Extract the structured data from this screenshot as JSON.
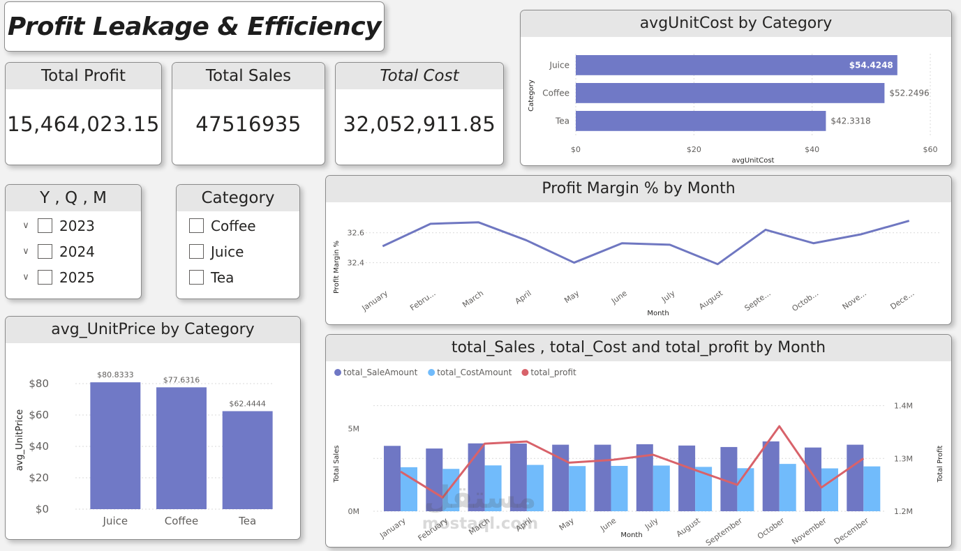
{
  "dashboard": {
    "title": "Profit Leakage & Efficiency"
  },
  "kpis": [
    {
      "label": "Total Profit",
      "value": "15,464,023.15"
    },
    {
      "label": "Total Sales",
      "value": "47516935"
    },
    {
      "label": "Total Cost",
      "value": "32,052,911.85"
    }
  ],
  "slicers": {
    "date": {
      "label": "Y , Q , M",
      "items": [
        "2023",
        "2024",
        "2025"
      ]
    },
    "category": {
      "label": "Category",
      "items": [
        "Coffee",
        "Juice",
        "Tea"
      ]
    }
  },
  "watermark": {
    "arabic": "مستقل",
    "latin": "mostaql.com"
  },
  "chart_data": [
    {
      "id": "avg_unit_cost",
      "type": "bar",
      "orientation": "horizontal",
      "title": "avgUnitCost by Category",
      "xlabel": "avgUnitCost",
      "ylabel": "Category",
      "categories": [
        "Juice",
        "Coffee",
        "Tea"
      ],
      "values": [
        54.4248,
        52.2496,
        42.3318
      ],
      "data_labels": [
        "$54.4248",
        "$52.2496",
        "$42.3318"
      ],
      "xlim": [
        0,
        60
      ],
      "x_ticks": [
        0,
        20,
        40,
        60
      ],
      "x_tick_labels": [
        "$0",
        "$20",
        "$40",
        "$60"
      ],
      "color": "#7079c6",
      "grid": true
    },
    {
      "id": "profit_margin",
      "type": "line",
      "title": "Profit Margin % by Month",
      "xlabel": "Month",
      "ylabel": "Profit Margin %",
      "categories": [
        "January",
        "Febru...",
        "March",
        "April",
        "May",
        "June",
        "July",
        "August",
        "Septe...",
        "Octob...",
        "Nove...",
        "Dece..."
      ],
      "values": [
        32.51,
        32.66,
        32.67,
        32.55,
        32.4,
        32.53,
        32.52,
        32.39,
        32.62,
        32.53,
        32.59,
        32.68
      ],
      "ylim": [
        32.3,
        32.72
      ],
      "y_ticks": [
        32.4,
        32.6
      ],
      "y_tick_labels": [
        "32.4",
        "32.6"
      ],
      "color": "#6f77c1",
      "grid": true
    },
    {
      "id": "avg_unit_price",
      "type": "bar",
      "title": "avg_UnitPrice by Category",
      "xlabel": "",
      "ylabel": "avg_UnitPrice",
      "categories": [
        "Juice",
        "Coffee",
        "Tea"
      ],
      "values": [
        80.8333,
        77.6316,
        62.4444
      ],
      "data_labels": [
        "$80.8333",
        "$77.6316",
        "$62.4444"
      ],
      "ylim": [
        0,
        88
      ],
      "y_ticks": [
        0,
        20,
        40,
        60,
        80
      ],
      "y_tick_labels": [
        "$0",
        "$20",
        "$40",
        "$60",
        "$80"
      ],
      "color": "#7079c6",
      "grid": true
    },
    {
      "id": "sales_cost_profit",
      "type": "bar",
      "title": "total_Sales , total_Cost and total_profit by Month",
      "xlabel": "Month",
      "ylabel": "Total Sales",
      "y2label": "Total Profit",
      "legend": "top-left",
      "categories": [
        "January",
        "February",
        "March",
        "April",
        "May",
        "June",
        "July",
        "August",
        "September",
        "October",
        "November",
        "December"
      ],
      "series": [
        {
          "name": "total_SaleAmount",
          "kind": "bar",
          "axis": "left",
          "color": "#6f77c4",
          "values": [
            3.95,
            3.79,
            4.1,
            4.09,
            4.02,
            4.02,
            4.05,
            3.97,
            3.88,
            4.22,
            3.85,
            4.02
          ]
        },
        {
          "name": "total_CostAmount",
          "kind": "bar",
          "axis": "left",
          "color": "#71bbfb",
          "values": [
            2.66,
            2.56,
            2.77,
            2.8,
            2.73,
            2.74,
            2.76,
            2.68,
            2.6,
            2.86,
            2.59,
            2.71
          ]
        },
        {
          "name": "total_profit",
          "kind": "line",
          "axis": "right",
          "color": "#d8626a",
          "values": [
            1.275,
            1.226,
            1.328,
            1.332,
            1.292,
            1.297,
            1.307,
            1.278,
            1.25,
            1.361,
            1.245,
            1.3
          ]
        }
      ],
      "ylim": [
        0,
        6.7
      ],
      "y_ticks": [
        0,
        5
      ],
      "y_tick_labels": [
        "0M",
        "5M"
      ],
      "y2lim": [
        1.2,
        1.41
      ],
      "y2_ticks": [
        1.2,
        1.3,
        1.4
      ],
      "y2_tick_labels": [
        "1.2M",
        "1.3M",
        "1.4M"
      ],
      "grid": true
    }
  ]
}
